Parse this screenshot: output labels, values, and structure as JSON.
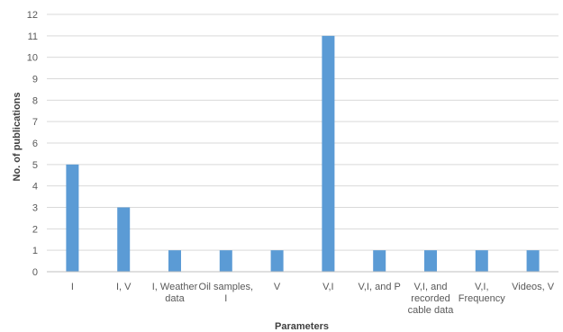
{
  "chart_data": {
    "type": "bar",
    "categories": [
      [
        "I"
      ],
      [
        "I, V"
      ],
      [
        "I, Weather",
        "data"
      ],
      [
        "Oil samples,",
        "I"
      ],
      [
        "V"
      ],
      [
        "V,I"
      ],
      [
        "V,I, and P"
      ],
      [
        "V,I, and",
        "recorded",
        "cable data"
      ],
      [
        "V,I,",
        "Frequency"
      ],
      [
        "Videos, V"
      ]
    ],
    "values": [
      5,
      3,
      1,
      1,
      1,
      11,
      1,
      1,
      1,
      1
    ],
    "xlabel": "Parameters",
    "ylabel": "No. of publications",
    "ylim": [
      0,
      12
    ],
    "yticks": [
      "0",
      "1",
      "2",
      "3",
      "4",
      "5",
      "6",
      "7",
      "8",
      "9",
      "10",
      "11",
      "12"
    ],
    "grid": true,
    "colors": {
      "bar": "#5B9BD5",
      "grid": "#D9D9D9",
      "axis": "#BFBFBF"
    }
  }
}
